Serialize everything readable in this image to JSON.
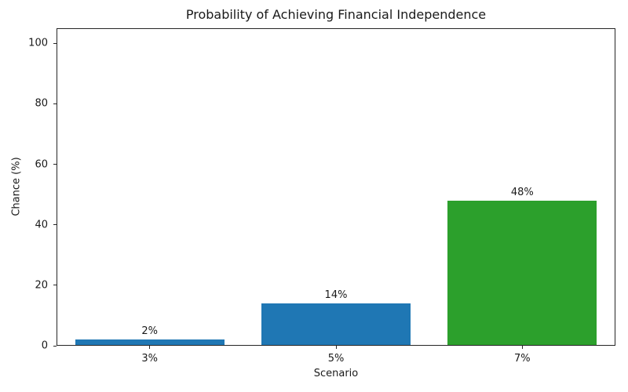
{
  "chart_data": {
    "type": "bar",
    "title": "Probability of Achieving Financial Independence",
    "xlabel": "Scenario",
    "ylabel": "Chance (%)",
    "categories": [
      "3%",
      "5%",
      "7%"
    ],
    "values": [
      2,
      14,
      48
    ],
    "value_labels": [
      "2%",
      "14%",
      "48%"
    ],
    "bar_colors": [
      "#1f77b4",
      "#1f77b4",
      "#2ca02c"
    ],
    "yticks": [
      0,
      20,
      40,
      60,
      80,
      100
    ],
    "ylim": [
      0,
      105
    ],
    "grid": false,
    "legend": "none",
    "text_color": "#1a1a1a",
    "spine_color": "#262626"
  }
}
